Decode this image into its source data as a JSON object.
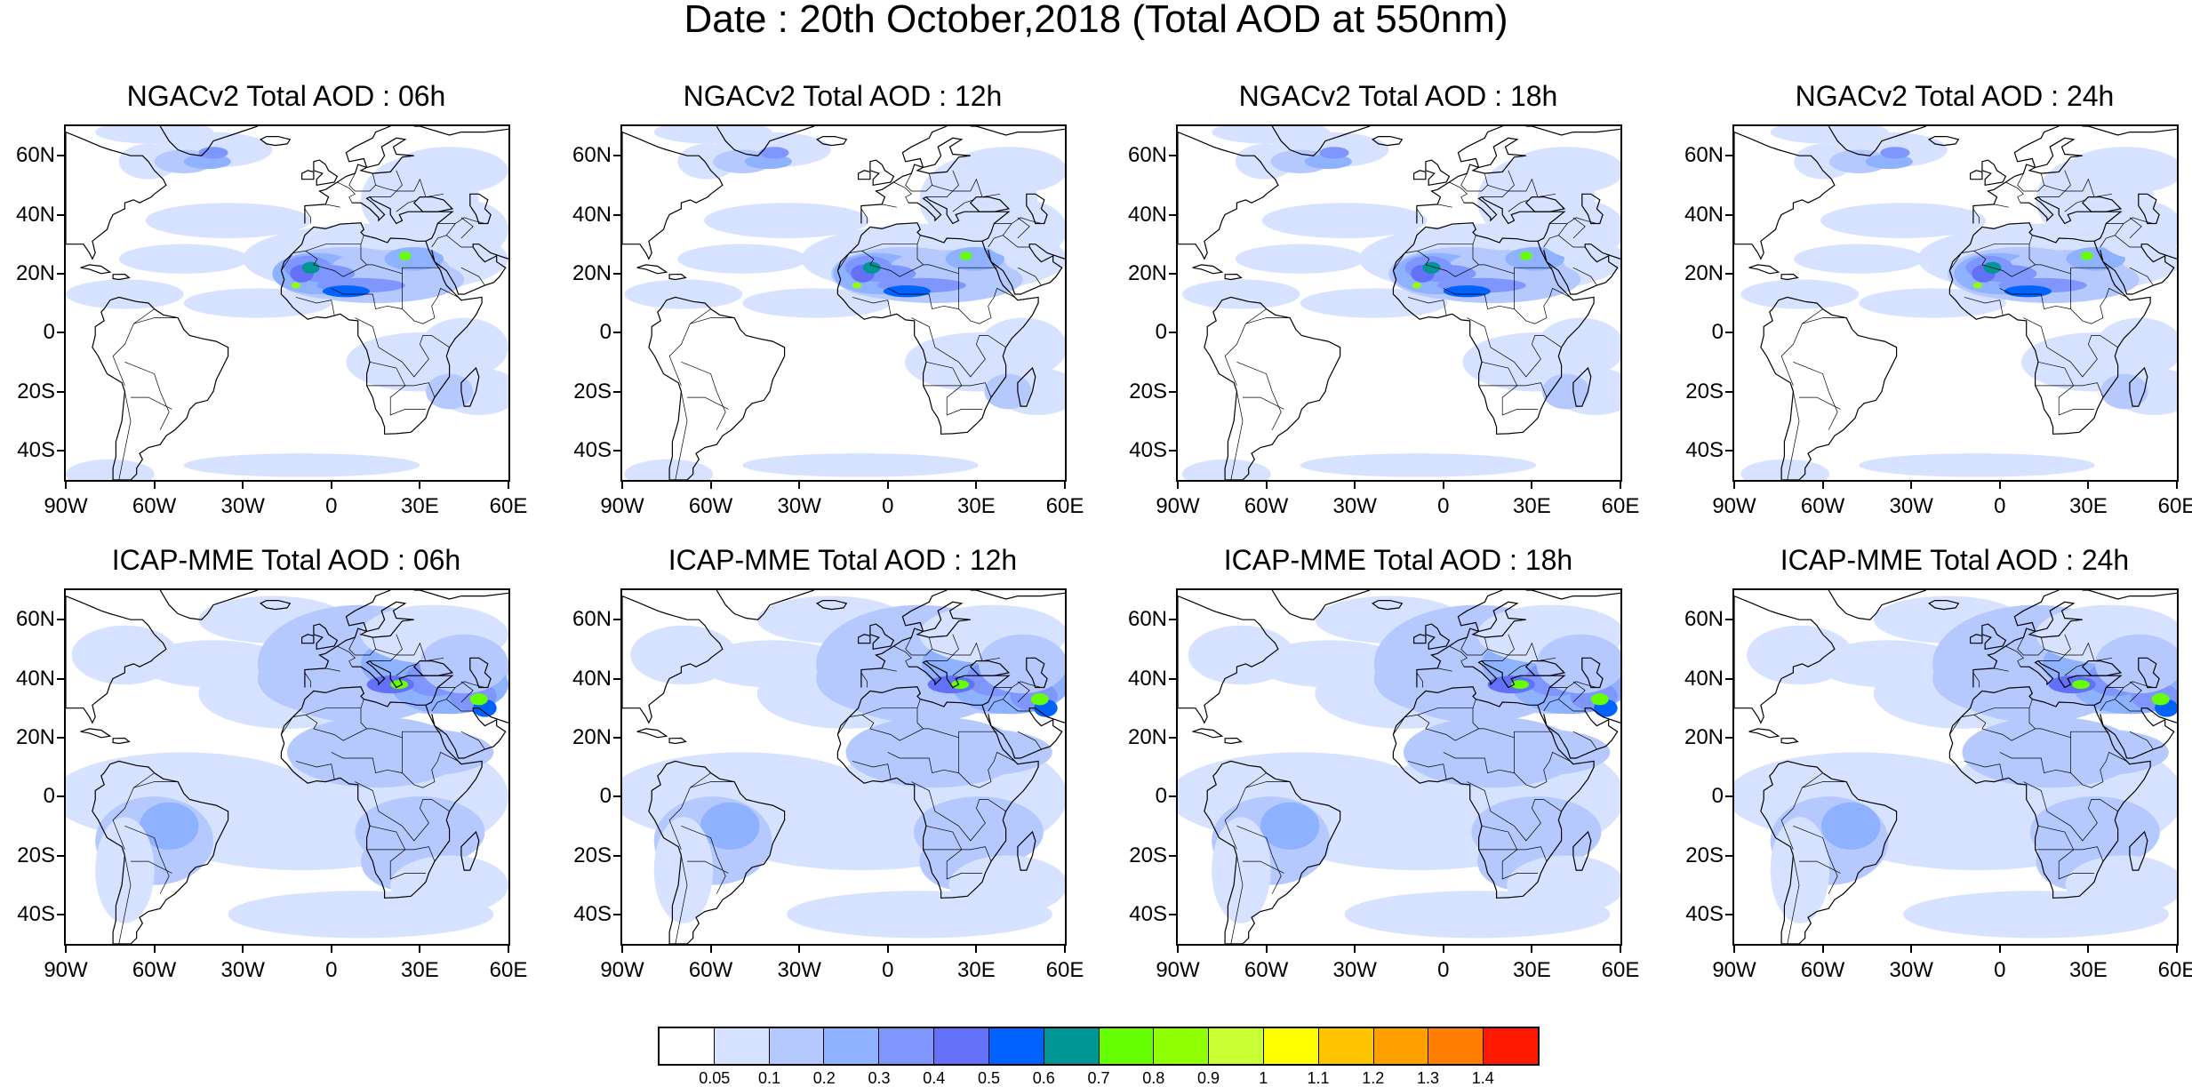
{
  "title": "Date : 20th October,2018 (Total AOD at 550nm)",
  "panels": [
    {
      "id": "ngac-06",
      "model": "ngac",
      "title": "NGACv2 Total AOD : 06h"
    },
    {
      "id": "ngac-12",
      "model": "ngac",
      "title": "NGACv2 Total AOD : 12h"
    },
    {
      "id": "ngac-18",
      "model": "ngac",
      "title": "NGACv2 Total AOD : 18h"
    },
    {
      "id": "ngac-24",
      "model": "ngac",
      "title": "NGACv2 Total AOD : 24h"
    },
    {
      "id": "icap-06",
      "model": "icap",
      "title": "ICAP-MME Total AOD : 06h"
    },
    {
      "id": "icap-12",
      "model": "icap",
      "title": "ICAP-MME Total AOD : 12h"
    },
    {
      "id": "icap-18",
      "model": "icap",
      "title": "ICAP-MME Total AOD : 18h"
    },
    {
      "id": "icap-24",
      "model": "icap",
      "title": "ICAP-MME Total AOD : 24h"
    }
  ],
  "lat_labels": [
    "60N",
    "40N",
    "20N",
    "0",
    "20S",
    "40S"
  ],
  "lat_values": [
    60,
    40,
    20,
    0,
    -20,
    -40
  ],
  "lon_labels": [
    "90W",
    "60W",
    "30W",
    "0",
    "30E",
    "60E"
  ],
  "lon_values": [
    -90,
    -60,
    -30,
    0,
    30,
    60
  ],
  "map_extent": {
    "lon": [
      -90,
      60
    ],
    "lat": [
      -50,
      70
    ]
  },
  "colorbar": {
    "colors": [
      "#ffffff",
      "#d6e2ff",
      "#b5c9ff",
      "#8eb2ff",
      "#7f96ff",
      "#6370f8",
      "#0063ff",
      "#009696",
      "#66ff00",
      "#90ff00",
      "#c8ff32",
      "#ffff00",
      "#ffc400",
      "#ffa000",
      "#ff7d00",
      "#ff1900"
    ],
    "labels": [
      "0.05",
      "0.1",
      "0.2",
      "0.3",
      "0.4",
      "0.5",
      "0.6",
      "0.7",
      "0.8",
      "0.9",
      "1",
      "1.1",
      "1.2",
      "1.3",
      "1.4"
    ]
  }
}
